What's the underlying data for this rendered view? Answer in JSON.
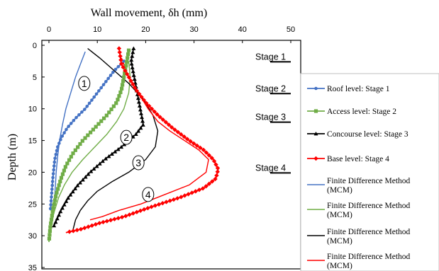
{
  "chart_data": {
    "type": "line",
    "xlabel": "Wall movement, δh (mm)",
    "ylabel": "Depth (m)",
    "xlim": [
      0,
      50
    ],
    "ylim": [
      0,
      35
    ],
    "x_ticks": [
      0,
      10,
      20,
      30,
      40,
      50
    ],
    "y_ticks": [
      0,
      5,
      10,
      15,
      20,
      25,
      30,
      35
    ],
    "y_inverted": true,
    "x_axis_position": "top",
    "grid": false,
    "legend_position": "right",
    "stages": [
      {
        "label": "Stage 1",
        "depth": 2.5
      },
      {
        "label": "Stage 2",
        "depth": 7.5
      },
      {
        "label": "Stage 3",
        "depth": 12.0
      },
      {
        "label": "Stage 4",
        "depth": 20.0
      }
    ],
    "curve_labels": [
      {
        "text": "1",
        "x": 7.3,
        "depth": 6.0
      },
      {
        "text": "2",
        "x": 16.0,
        "depth": 14.5
      },
      {
        "text": "3",
        "x": 18.5,
        "depth": 18.5
      },
      {
        "text": "4",
        "x": 20.5,
        "depth": 23.5
      }
    ],
    "series": [
      {
        "name": "Roof level: Stage 1",
        "color": "#4472C4",
        "marker": "circle",
        "x": [
          15.5,
          13.5,
          11.5,
          9.5,
          7.5,
          5.5,
          3.8,
          2.6,
          1.8,
          1.2,
          0.8,
          0.5,
          0.3
        ],
        "y": [
          2.5,
          4.0,
          6.0,
          8.0,
          10.0,
          11.5,
          13.0,
          14.5,
          16.0,
          18.0,
          21.0,
          24.0,
          26.0
        ]
      },
      {
        "name": "Access level: Stage 2",
        "color": "#70AD47",
        "marker": "square",
        "x": [
          16.5,
          16.0,
          15.5,
          15.0,
          14.0,
          12.0,
          9.5,
          7.0,
          5.0,
          3.5,
          2.5,
          1.5,
          0.8,
          0.3,
          0.0
        ],
        "y": [
          0.8,
          3.0,
          5.0,
          7.0,
          9.0,
          11.0,
          13.0,
          15.0,
          17.0,
          19.0,
          21.0,
          23.5,
          26.0,
          28.5,
          31.0
        ]
      },
      {
        "name": "Concourse level: Stage 3",
        "color": "#000000",
        "marker": "triangle",
        "x": [
          17.5,
          17.0,
          17.5,
          18.0,
          18.5,
          19.0,
          19.5,
          18.0,
          15.0,
          11.5,
          8.5,
          6.0,
          4.0,
          2.5,
          1.0
        ],
        "y": [
          0.5,
          2.5,
          4.5,
          6.5,
          8.5,
          10.5,
          12.5,
          14.0,
          16.0,
          18.0,
          20.0,
          22.0,
          24.0,
          26.0,
          28.5
        ]
      },
      {
        "name": "Base level: Stage 4",
        "color": "#FF0000",
        "marker": "diamond",
        "x": [
          14.5,
          15.0,
          16.5,
          18.0,
          20.0,
          22.5,
          25.5,
          29.0,
          32.0,
          34.0,
          35.0,
          34.5,
          32.0,
          27.0,
          21.0,
          15.5,
          10.5,
          6.5,
          3.5
        ],
        "y": [
          0.5,
          3.0,
          5.0,
          7.0,
          9.0,
          11.0,
          13.0,
          15.0,
          16.5,
          18.0,
          19.5,
          21.0,
          22.5,
          24.0,
          25.5,
          27.0,
          28.0,
          29.0,
          29.5
        ]
      },
      {
        "name": "Finite Difference Method (MCM)",
        "color": "#4472C4",
        "marker": "none",
        "x": [
          7.5,
          6.5,
          5.5,
          4.5,
          3.5,
          2.8,
          2.2,
          1.8,
          1.5,
          1.3,
          1.1
        ],
        "y": [
          1.0,
          3.0,
          5.0,
          7.5,
          10.0,
          12.5,
          15.0,
          17.5,
          20.0,
          22.5,
          25.0
        ]
      },
      {
        "name": "Finite Difference Method (MCM)",
        "color": "#70AD47",
        "marker": "none",
        "x": [
          16.5,
          16.8,
          16.5,
          15.5,
          14.0,
          12.0,
          9.5,
          7.0,
          4.8,
          3.2,
          2.0,
          1.0,
          0.5
        ],
        "y": [
          2.5,
          5.0,
          7.5,
          10.0,
          12.0,
          14.0,
          16.0,
          18.0,
          20.0,
          22.0,
          24.0,
          26.5,
          28.5
        ]
      },
      {
        "name": "Finite Difference Method (MCM)",
        "color": "#000000",
        "marker": "none",
        "x": [
          8.0,
          10.5,
          13.5,
          16.5,
          19.5,
          21.5,
          22.5,
          22.0,
          20.0,
          16.5,
          13.0,
          10.0,
          8.0,
          6.5,
          5.5,
          5.0
        ],
        "y": [
          0.5,
          2.0,
          4.0,
          6.0,
          8.5,
          11.0,
          13.5,
          16.0,
          18.0,
          20.0,
          21.5,
          23.0,
          24.5,
          26.0,
          27.5,
          29.0
        ]
      },
      {
        "name": "Finite Difference Method (MCM)",
        "color": "#FF0000",
        "marker": "none",
        "x": [
          15.0,
          16.5,
          18.5,
          20.5,
          22.5,
          25.0,
          28.0,
          31.0,
          33.0,
          32.5,
          29.0,
          24.0,
          19.0,
          14.5,
          11.0,
          8.5
        ],
        "y": [
          2.0,
          5.0,
          7.5,
          10.0,
          12.0,
          13.5,
          15.0,
          16.5,
          18.0,
          20.0,
          22.0,
          23.5,
          25.0,
          26.0,
          27.0,
          27.5
        ]
      }
    ]
  }
}
